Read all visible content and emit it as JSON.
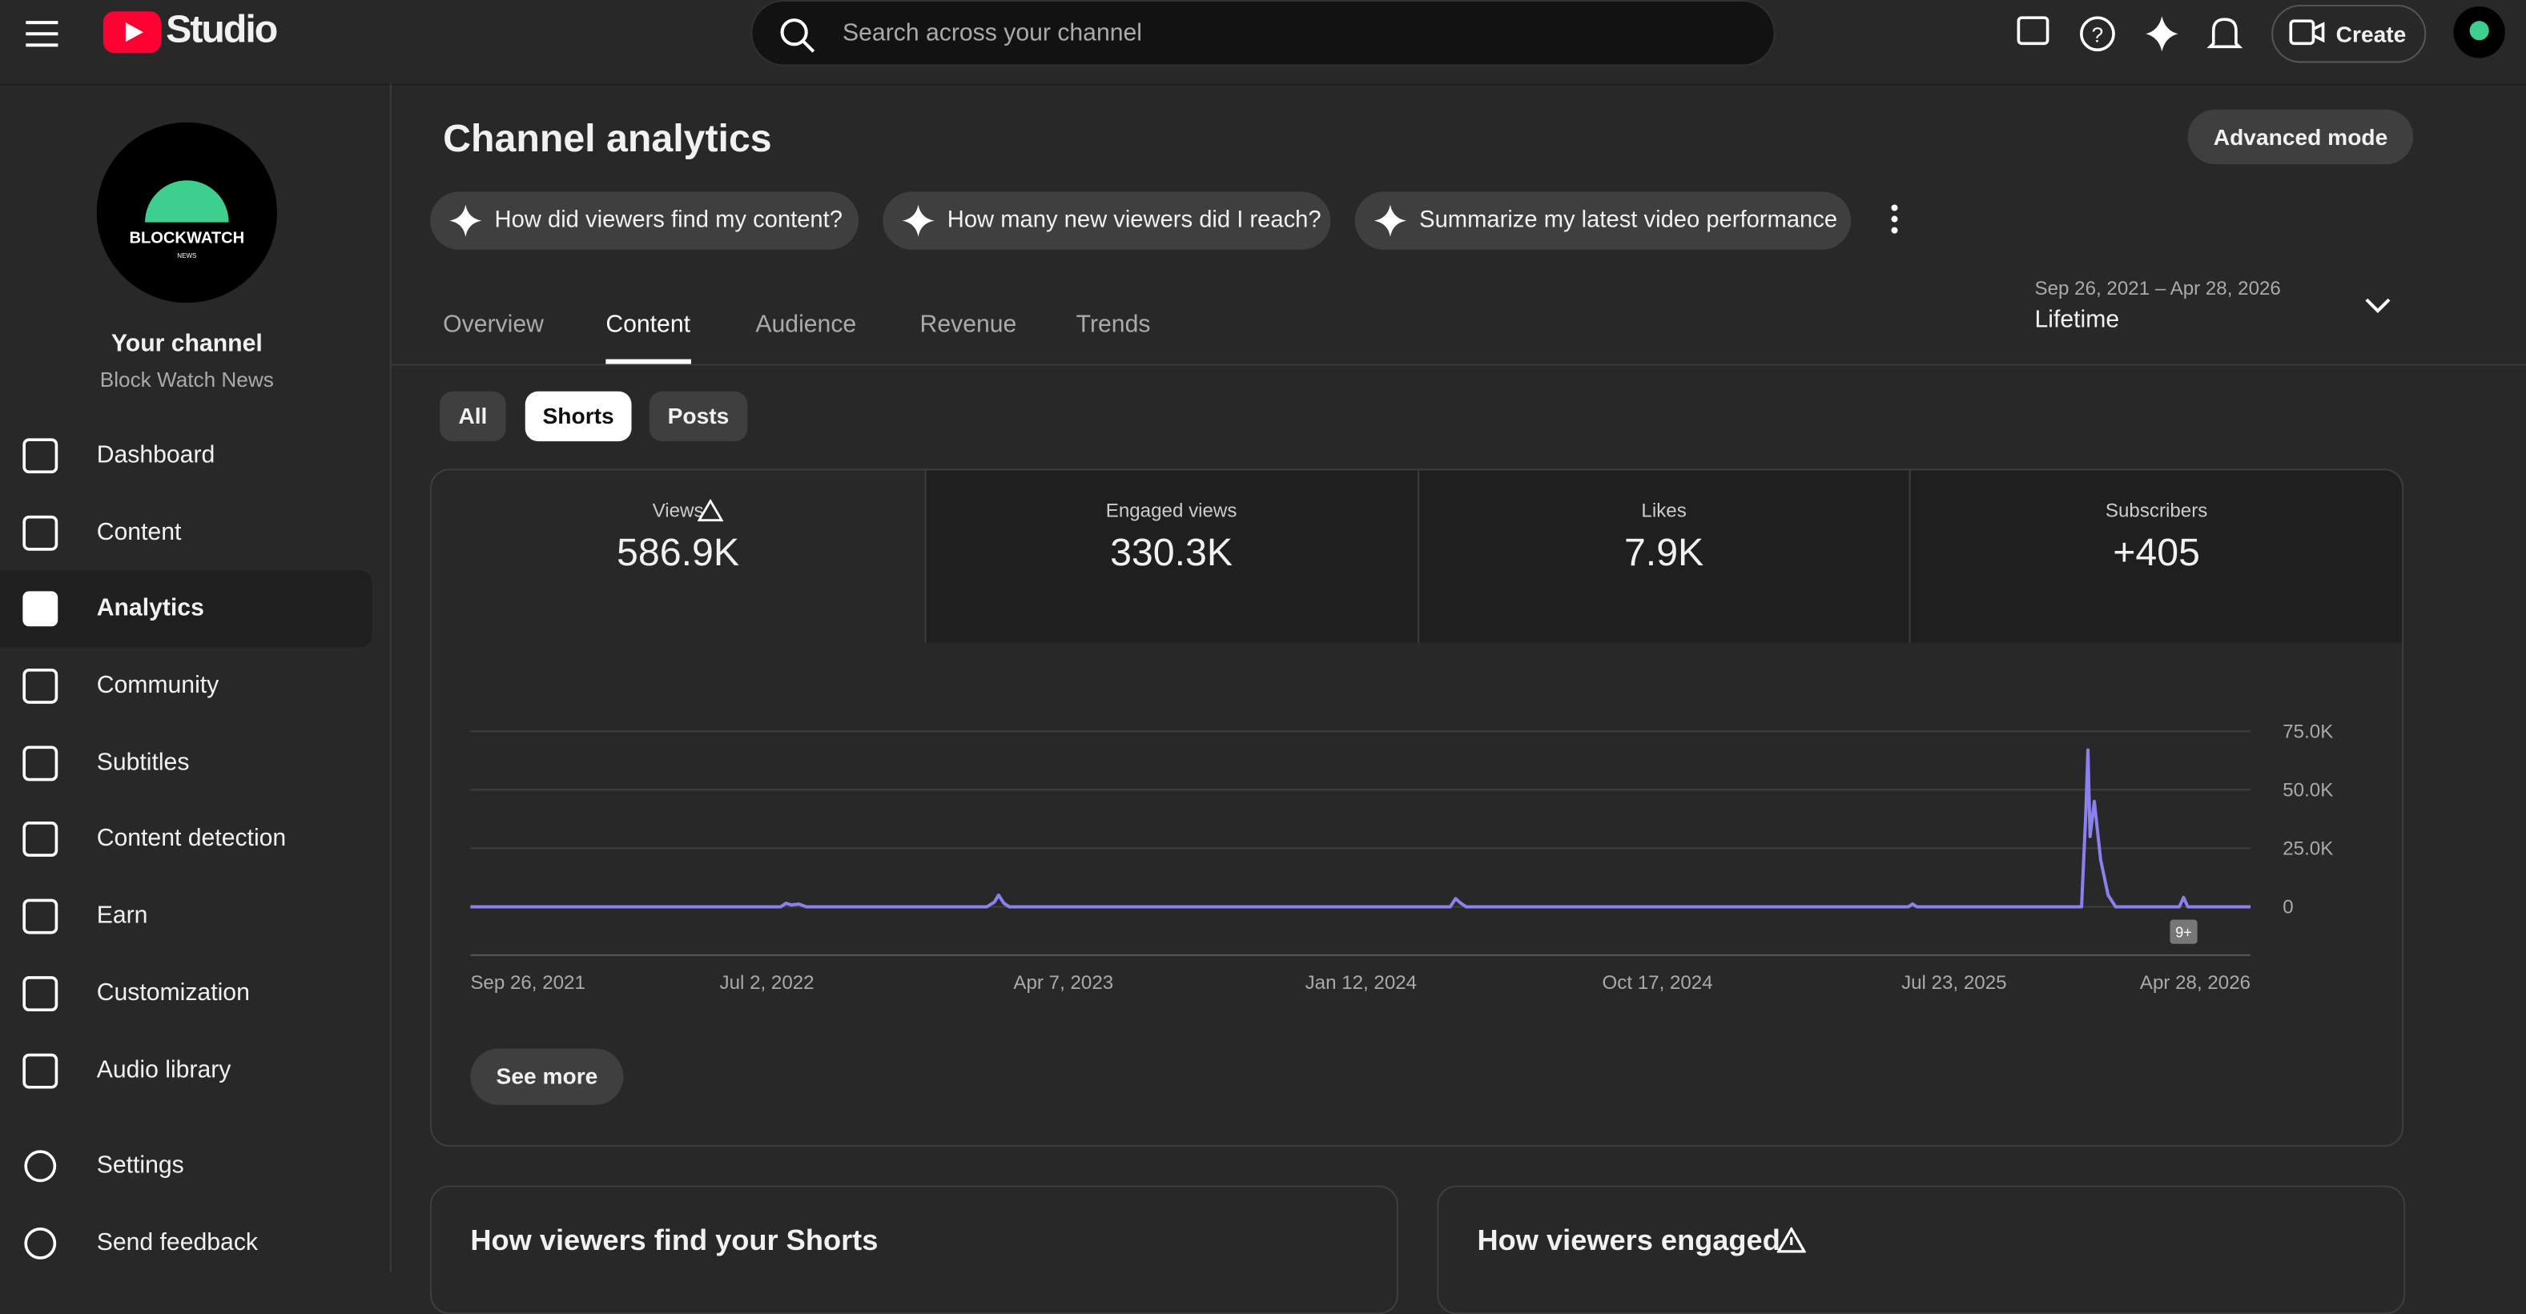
{
  "topbar": {
    "logo": "Studio",
    "search_placeholder": "Search across your channel",
    "create": "Create"
  },
  "sidebar": {
    "avatar_text": "BLOCKWATCH",
    "avatar_sub": "NEWS",
    "channel_label": "Your channel",
    "channel_name": "Block Watch News",
    "nav": [
      "Dashboard",
      "Content",
      "Analytics",
      "Community",
      "Subtitles",
      "Content detection",
      "Earn",
      "Customization",
      "Audio library"
    ],
    "footer_nav": [
      "Settings",
      "Send feedback"
    ]
  },
  "main": {
    "title": "Channel analytics",
    "advanced": "Advanced mode",
    "prompts": [
      "How did viewers find my content?",
      "How many new viewers did I reach?",
      "Summarize my latest video performance"
    ],
    "tabs": [
      "Overview",
      "Content",
      "Audience",
      "Revenue",
      "Trends"
    ],
    "date_range": "Sep 26, 2021 – Apr 28, 2026",
    "period": "Lifetime",
    "filters": [
      "All",
      "Shorts",
      "Posts"
    ],
    "metrics": [
      {
        "label": "Views",
        "value": "586.9K"
      },
      {
        "label": "Engaged views",
        "value": "330.3K"
      },
      {
        "label": "Likes",
        "value": "7.9K"
      },
      {
        "label": "Subscribers",
        "value": "+405"
      }
    ],
    "badge": "9+",
    "see_more": "See more",
    "cards": [
      "How viewers find your Shorts",
      "How viewers engaged"
    ]
  },
  "chart": {
    "type": "line",
    "color": "#8b80f0",
    "grid": true,
    "x": [
      "2021-09-26",
      "2022-07-15",
      "2022-07-20",
      "2022-07-25",
      "2022-08-01",
      "2022-08-08",
      "2023-01-25",
      "2023-02-01",
      "2023-02-05",
      "2023-02-10",
      "2023-02-15",
      "2024-04-05",
      "2024-04-10",
      "2024-04-15",
      "2024-04-20",
      "2025-06-10",
      "2025-06-14",
      "2025-06-18",
      "2025-11-20",
      "2025-11-24",
      "2025-11-26",
      "2025-11-28",
      "2025-12-02",
      "2025-12-08",
      "2025-12-15",
      "2025-12-22",
      "2026-02-20",
      "2026-02-24",
      "2026-02-28",
      "2026-04-28"
    ],
    "values": [
      0,
      0,
      1500,
      800,
      1200,
      0,
      0,
      2000,
      5000,
      1500,
      0,
      0,
      3500,
      1500,
      0,
      0,
      1200,
      0,
      0,
      40000,
      67000,
      30000,
      45000,
      20000,
      5000,
      0,
      0,
      4000,
      0,
      0
    ],
    "xlim": [
      "2021-09-26",
      "2026-04-28"
    ],
    "xticks": [
      {
        "value": "2021-09-26",
        "label": "Sep 26, 2021"
      },
      {
        "value": "2022-07-02",
        "label": "Jul 2, 2022"
      },
      {
        "value": "2023-04-07",
        "label": "Apr 7, 2023"
      },
      {
        "value": "2024-01-12",
        "label": "Jan 12, 2024"
      },
      {
        "value": "2024-10-17",
        "label": "Oct 17, 2024"
      },
      {
        "value": "2025-07-23",
        "label": "Jul 23, 2025"
      },
      {
        "value": "2026-04-28",
        "label": "Apr 28, 2026"
      }
    ],
    "ylim": [
      0,
      75000
    ],
    "yticks": [
      0,
      {
        "value": 25000,
        "label": "25.0K"
      },
      {
        "value": 50000,
        "label": "50.0K"
      },
      {
        "value": 75000,
        "label": "75.0K"
      }
    ]
  }
}
